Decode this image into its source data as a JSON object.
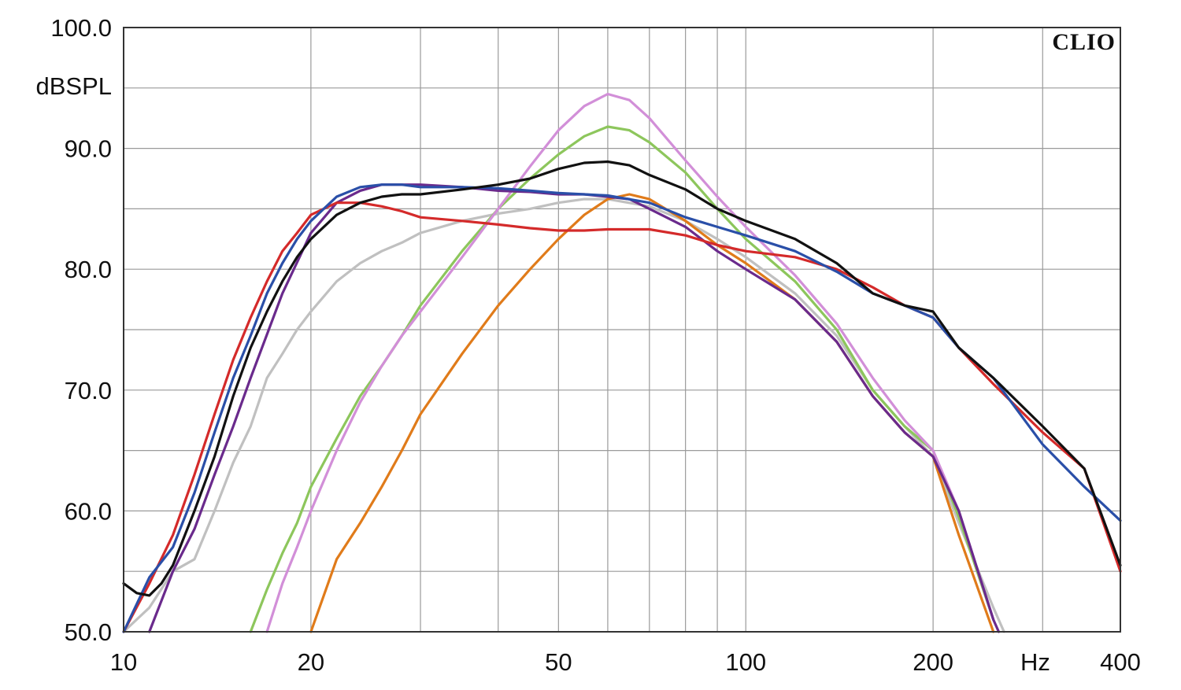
{
  "chart_data": {
    "type": "line",
    "brand": "CLIO",
    "ylabel": "dBSPL",
    "xlabel": "Hz",
    "x_scale": "log",
    "xlim": [
      10,
      400
    ],
    "ylim": [
      50,
      100
    ],
    "grid": true,
    "y_ticks": [
      {
        "value": 50,
        "label": "50.0"
      },
      {
        "value": 60,
        "label": "60.0"
      },
      {
        "value": 70,
        "label": "70.0"
      },
      {
        "value": 80,
        "label": "80.0"
      },
      {
        "value": 90,
        "label": "90.0"
      },
      {
        "value": 100,
        "label": "100.0"
      }
    ],
    "x_ticks": [
      {
        "value": 10,
        "label": "10"
      },
      {
        "value": 20,
        "label": "20"
      },
      {
        "value": 50,
        "label": "50"
      },
      {
        "value": 100,
        "label": "100"
      },
      {
        "value": 200,
        "label": "200"
      },
      {
        "value": 400,
        "label": "400"
      }
    ],
    "x_grid": [
      10,
      20,
      30,
      40,
      50,
      60,
      70,
      80,
      90,
      100,
      200,
      300,
      400
    ],
    "y_grid": [
      50,
      55,
      60,
      65,
      70,
      75,
      80,
      85,
      90,
      95,
      100
    ],
    "series": [
      {
        "color": "#c0c0c0",
        "x": [
          10,
          11,
          12,
          13,
          14,
          15,
          16,
          17,
          18,
          19,
          20,
          22,
          24,
          26,
          28,
          30,
          35,
          40,
          45,
          50,
          55,
          60,
          70,
          80,
          90,
          100,
          120,
          140,
          160,
          180,
          200,
          220,
          250,
          260
        ],
        "y": [
          50,
          52,
          55,
          56,
          60,
          64,
          67,
          71,
          73,
          75,
          76.5,
          79,
          80.5,
          81.5,
          82.2,
          83,
          84,
          84.6,
          85,
          85.5,
          85.8,
          85.8,
          85.2,
          84,
          82.5,
          81,
          78,
          74.5,
          70,
          67,
          64.5,
          59,
          52,
          50
        ]
      },
      {
        "color": "#e07b1a",
        "x": [
          20,
          22,
          24,
          26,
          28,
          30,
          35,
          40,
          45,
          50,
          55,
          60,
          65,
          70,
          80,
          90,
          100,
          120,
          140,
          160,
          180,
          200,
          220,
          250
        ],
        "y": [
          50,
          56,
          59,
          62,
          65,
          68,
          73,
          77,
          80,
          82.5,
          84.5,
          85.8,
          86.2,
          85.8,
          84,
          82,
          80.5,
          77.5,
          74,
          69.5,
          66.5,
          64.5,
          58,
          50
        ]
      },
      {
        "color": "#8dc65c",
        "x": [
          16,
          17,
          18,
          19,
          20,
          22,
          24,
          26,
          28,
          30,
          35,
          40,
          45,
          50,
          55,
          60,
          65,
          70,
          80,
          90,
          100,
          120,
          140,
          160,
          180,
          200,
          220,
          250
        ],
        "y": [
          50,
          53.5,
          56.5,
          59,
          62,
          66,
          69.5,
          72,
          74.5,
          77,
          81.5,
          85,
          87.5,
          89.5,
          91,
          91.8,
          91.5,
          90.5,
          88,
          85,
          82.5,
          79,
          75,
          70,
          67,
          65,
          59.5,
          51
        ]
      },
      {
        "color": "#d28fd8",
        "x": [
          17,
          18,
          19,
          20,
          22,
          24,
          26,
          28,
          30,
          35,
          40,
          45,
          50,
          55,
          60,
          65,
          70,
          80,
          90,
          100,
          120,
          140,
          160,
          180,
          200,
          220,
          250
        ],
        "y": [
          50,
          54,
          57,
          60,
          65,
          69,
          72,
          74.5,
          76.5,
          81,
          85,
          88.5,
          91.5,
          93.5,
          94.5,
          94,
          92.5,
          89,
          86,
          83.5,
          79.5,
          75.5,
          71,
          67.5,
          65,
          60,
          51
        ]
      },
      {
        "color": "#6a2a8c",
        "x": [
          11,
          12,
          13,
          14,
          15,
          16,
          18,
          20,
          22,
          24,
          26,
          28,
          30,
          35,
          40,
          45,
          50,
          55,
          60,
          65,
          70,
          80,
          90,
          100,
          120,
          140,
          160,
          180,
          200,
          220,
          250,
          255
        ],
        "y": [
          50,
          55,
          58.5,
          63,
          67,
          71,
          78,
          83,
          85.5,
          86.5,
          87,
          87,
          87,
          86.8,
          86.5,
          86.4,
          86.2,
          86.2,
          86,
          85.8,
          85,
          83.5,
          81.5,
          80,
          77.5,
          74,
          69.5,
          66.5,
          64.5,
          60,
          51,
          50
        ]
      },
      {
        "color": "#d42a2a",
        "x": [
          10,
          11,
          12,
          13,
          14,
          15,
          16,
          17,
          18,
          19,
          20,
          22,
          24,
          26,
          28,
          30,
          35,
          40,
          45,
          50,
          55,
          60,
          70,
          80,
          90,
          100,
          120,
          140,
          160,
          180,
          200,
          220,
          250,
          300,
          350,
          400
        ],
        "y": [
          50,
          54,
          58,
          63,
          68,
          72.5,
          76,
          79,
          81.5,
          83,
          84.5,
          85.5,
          85.5,
          85.2,
          84.8,
          84.3,
          84,
          83.7,
          83.4,
          83.2,
          83.2,
          83.3,
          83.3,
          82.8,
          82,
          81.5,
          81,
          80,
          78.5,
          77,
          76,
          73.5,
          70.5,
          66.5,
          63.5,
          55
        ]
      },
      {
        "color": "#2a4fa8",
        "x": [
          10,
          11,
          12,
          13,
          14,
          15,
          16,
          17,
          18,
          19,
          20,
          22,
          24,
          26,
          28,
          30,
          35,
          40,
          45,
          50,
          55,
          60,
          70,
          80,
          90,
          100,
          120,
          140,
          160,
          180,
          200,
          220,
          250,
          300,
          350,
          400
        ],
        "y": [
          50,
          54.5,
          57,
          61.5,
          66.5,
          71,
          74.5,
          78,
          80.5,
          82.5,
          84,
          86,
          86.8,
          87,
          87,
          86.8,
          86.8,
          86.7,
          86.5,
          86.3,
          86.2,
          86.1,
          85.5,
          84.3,
          83.5,
          82.8,
          81.5,
          79.8,
          78,
          77,
          76,
          73.5,
          71,
          65.5,
          62,
          59.2
        ]
      },
      {
        "color": "#111111",
        "x": [
          10,
          10.5,
          11,
          11.5,
          12,
          13,
          14,
          15,
          16,
          17,
          18,
          19,
          20,
          22,
          24,
          26,
          28,
          30,
          35,
          40,
          45,
          50,
          55,
          60,
          65,
          70,
          80,
          90,
          100,
          120,
          140,
          160,
          180,
          200,
          220,
          250,
          300,
          350,
          400
        ],
        "y": [
          54,
          53.2,
          53,
          54,
          55.5,
          60,
          64.5,
          69.5,
          73.5,
          76.5,
          79,
          81,
          82.5,
          84.5,
          85.5,
          86,
          86.2,
          86.2,
          86.6,
          87,
          87.5,
          88.3,
          88.8,
          88.9,
          88.6,
          87.8,
          86.6,
          85,
          84,
          82.5,
          80.5,
          78,
          77,
          76.5,
          73.5,
          71,
          67,
          63.5,
          55.5
        ]
      }
    ]
  }
}
